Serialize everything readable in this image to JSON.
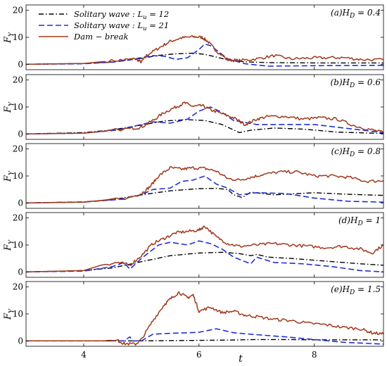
{
  "figure": {
    "xlabel": "t",
    "ylabel_main": "F",
    "ylabel_sub": "Y"
  },
  "legend": [
    {
      "label": "Solitary wave :  Lu = 12",
      "color": "#000000",
      "style": "dashdot"
    },
    {
      "label": "Solitary wave :  Lu = 21",
      "color": "#1f2fd6",
      "style": "dashed"
    },
    {
      "label": "Dam − break",
      "color": "#a0381c",
      "style": "solid"
    }
  ],
  "chart_data": [
    {
      "type": "line",
      "panel": "(a)",
      "label": "(a)HD = 0.4",
      "xlim": [
        3,
        9.2
      ],
      "ylim": [
        -2,
        22
      ],
      "yticks": [
        0,
        10,
        20
      ],
      "xticks": [
        4,
        6,
        8
      ],
      "series": [
        {
          "name": "Solitary wave : Lu = 12",
          "x": [
            3,
            4,
            4.5,
            5,
            5.3,
            5.6,
            5.9,
            6.1,
            6.3,
            6.5,
            6.8,
            7.2,
            8,
            9.2
          ],
          "y": [
            0,
            0.3,
            0.9,
            2.2,
            3.3,
            3.9,
            4.1,
            3.7,
            2.7,
            1.6,
            0.9,
            0.6,
            0.5,
            0.5
          ]
        },
        {
          "name": "Solitary wave : Lu = 21",
          "x": [
            3,
            4,
            4.5,
            4.8,
            5.0,
            5.2,
            5.4,
            5.6,
            5.8,
            6.0,
            6.1,
            6.2,
            6.35,
            6.5,
            6.8,
            7.2,
            8,
            9.2
          ],
          "y": [
            0,
            0.2,
            0.8,
            1.6,
            2.5,
            3.2,
            3.0,
            1.8,
            2.4,
            5.5,
            7.5,
            6.9,
            4.5,
            2.0,
            0.2,
            -0.7,
            -0.5,
            -0.4
          ]
        },
        {
          "name": "Dam − break",
          "x": [
            3,
            4,
            4.6,
            4.9,
            5.0,
            5.1,
            5.3,
            5.5,
            5.7,
            5.9,
            6.05,
            6.15,
            6.3,
            6.5,
            6.7,
            7.0,
            7.3,
            7.6,
            7.9,
            8.2,
            8.5,
            8.8,
            9.2
          ],
          "y": [
            0,
            0.3,
            1.5,
            2.0,
            0.8,
            3.5,
            6.0,
            8.5,
            9.8,
            10.2,
            10.0,
            8.5,
            5.0,
            1.6,
            1.4,
            2.0,
            3.2,
            2.0,
            2.3,
            2.4,
            2.5,
            1.8,
            1.6
          ]
        }
      ]
    },
    {
      "type": "line",
      "panel": "(b)",
      "label": "(b)HD = 0.6",
      "xlim": [
        3,
        9.2
      ],
      "ylim": [
        -2,
        22
      ],
      "yticks": [
        0,
        10,
        20
      ],
      "xticks": [
        4,
        6,
        8
      ],
      "series": [
        {
          "name": "Solitary wave : Lu = 12",
          "x": [
            3,
            4,
            4.5,
            5,
            5.4,
            5.8,
            6.1,
            6.4,
            6.6,
            6.7,
            6.9,
            7.3,
            7.8,
            8.4,
            9.2
          ],
          "y": [
            0,
            0.5,
            1.5,
            3.3,
            4.8,
            5.3,
            5.0,
            3.5,
            1.5,
            0.5,
            1.4,
            2.2,
            1.8,
            0.7,
            0.2
          ]
        },
        {
          "name": "Solitary wave : Lu = 21",
          "x": [
            3,
            4,
            4.6,
            5.0,
            5.2,
            5.5,
            5.8,
            6.0,
            6.2,
            6.4,
            6.6,
            7.0,
            7.5,
            8.0,
            8.6,
            9.2
          ],
          "y": [
            0,
            0.3,
            1.5,
            3.5,
            4.5,
            4.0,
            5.5,
            8.5,
            10.0,
            8.0,
            5.0,
            3.5,
            3.5,
            3.5,
            2.0,
            0.5
          ]
        },
        {
          "name": "Dam − break",
          "x": [
            3,
            4,
            4.8,
            5.0,
            5.2,
            5.4,
            5.6,
            5.75,
            5.9,
            6.05,
            6.2,
            6.4,
            6.6,
            6.8,
            7.0,
            7.2,
            7.5,
            7.8,
            8.1,
            8.4,
            8.7,
            9.0,
            9.2
          ],
          "y": [
            0,
            0.3,
            2.0,
            2.5,
            5.0,
            8.0,
            10.0,
            11.5,
            10.2,
            10.5,
            9.0,
            7.5,
            6.0,
            3.5,
            5.5,
            6.5,
            6.5,
            5.5,
            6.0,
            5.5,
            3.0,
            1.5,
            0.5
          ]
        }
      ]
    },
    {
      "type": "line",
      "panel": "(c)",
      "label": "(c)HD = 0.8",
      "xlim": [
        3,
        9.2
      ],
      "ylim": [
        -2,
        22
      ],
      "yticks": [
        0,
        10,
        20
      ],
      "xticks": [
        4,
        6,
        8
      ],
      "series": [
        {
          "name": "Solitary wave : Lu = 12",
          "x": [
            3,
            4,
            4.5,
            5,
            5.5,
            6.0,
            6.3,
            6.5,
            6.6,
            6.75,
            6.9,
            7.3,
            8.0,
            8.6,
            9.2
          ],
          "y": [
            0,
            0.4,
            1.2,
            3.0,
            4.5,
            5.3,
            5.4,
            5.0,
            3.0,
            2.0,
            4.0,
            3.0,
            3.8,
            3.2,
            2.8
          ]
        },
        {
          "name": "Solitary wave : Lu = 21",
          "x": [
            3,
            4,
            4.6,
            5.0,
            5.2,
            5.5,
            5.7,
            5.9,
            6.1,
            6.3,
            6.5,
            6.7,
            7.0,
            7.5,
            8.0,
            8.6,
            9.2
          ],
          "y": [
            0,
            0.3,
            1.3,
            3.0,
            5.0,
            5.5,
            8.0,
            8.5,
            10.0,
            7.0,
            5.5,
            3.0,
            3.8,
            3.5,
            1.8,
            0.6,
            0.3
          ]
        },
        {
          "name": "Dam − break",
          "x": [
            3,
            4,
            4.8,
            5.0,
            5.15,
            5.3,
            5.5,
            5.7,
            5.9,
            6.1,
            6.3,
            6.5,
            6.7,
            6.9,
            7.1,
            7.4,
            7.7,
            8.0,
            8.3,
            8.6,
            8.9,
            9.2
          ],
          "y": [
            0,
            0.3,
            2.0,
            3.5,
            6.0,
            10.0,
            13.0,
            12.5,
            13.0,
            12.8,
            11.8,
            9.0,
            8.5,
            9.5,
            10.5,
            11.5,
            11.5,
            10.0,
            10.0,
            9.5,
            8.0,
            8.2
          ]
        }
      ]
    },
    {
      "type": "line",
      "panel": "(d)",
      "label": "(d)HD = 1",
      "xlim": [
        3,
        9.2
      ],
      "ylim": [
        -2,
        22
      ],
      "yticks": [
        0,
        10,
        20
      ],
      "xticks": [
        4,
        6,
        8
      ],
      "series": [
        {
          "name": "Solitary wave : Lu = 12",
          "x": [
            3,
            4,
            4.5,
            5,
            5.5,
            6.0,
            6.4,
            6.7,
            6.9,
            7.0,
            7.2,
            7.6,
            8.2,
            8.8,
            9.2
          ],
          "y": [
            0,
            0.5,
            1.5,
            3.8,
            6.0,
            7.0,
            7.3,
            6.8,
            6.0,
            6.5,
            5.5,
            5.0,
            4.0,
            3.0,
            2.5
          ]
        },
        {
          "name": "Solitary wave : Lu = 21",
          "x": [
            3,
            4,
            4.5,
            4.7,
            4.8,
            5.0,
            5.3,
            5.5,
            5.8,
            6.0,
            6.2,
            6.4,
            6.6,
            6.9,
            7.0,
            7.3,
            7.8,
            8.3,
            8.8,
            9.2
          ],
          "y": [
            0,
            0.3,
            2.0,
            3.5,
            1.0,
            5.0,
            10.0,
            11.0,
            10.0,
            11.5,
            10.5,
            8.5,
            5.5,
            3.0,
            5.5,
            3.5,
            3.0,
            2.0,
            0.5,
            0.0
          ]
        },
        {
          "name": "Dam − break",
          "x": [
            3,
            4,
            4.3,
            4.6,
            4.8,
            5.0,
            5.2,
            5.4,
            5.6,
            5.8,
            6.0,
            6.1,
            6.3,
            6.5,
            6.7,
            7.0,
            7.3,
            7.6,
            7.9,
            8.2,
            8.5,
            8.8,
            9.0,
            9.2
          ],
          "y": [
            0,
            0.5,
            2.5,
            3.5,
            2.5,
            6.0,
            10.5,
            12.5,
            14.5,
            15.0,
            15.5,
            17.0,
            13.0,
            10.5,
            9.5,
            10.0,
            10.5,
            10.0,
            9.5,
            9.0,
            9.5,
            8.5,
            7.0,
            10.0
          ]
        }
      ]
    },
    {
      "type": "line",
      "panel": "(e)",
      "label": "(e)HD = 1.5",
      "xlim": [
        3,
        9.2
      ],
      "ylim": [
        -2,
        22
      ],
      "yticks": [
        0,
        10,
        20
      ],
      "xticks": [
        4,
        6,
        8
      ],
      "series": [
        {
          "name": "Solitary wave : Lu = 12",
          "x": [
            3,
            4,
            5,
            5.5,
            6.0,
            6.5,
            7.0,
            7.5,
            8.0,
            8.5,
            9.2
          ],
          "y": [
            0,
            0,
            0,
            0.1,
            0.2,
            0.3,
            0.5,
            0.5,
            0.4,
            0.4,
            0.4
          ]
        },
        {
          "name": "Solitary wave : Lu = 21",
          "x": [
            3,
            4,
            4.7,
            4.8,
            4.85,
            5.0,
            5.2,
            5.5,
            5.8,
            6.0,
            6.3,
            6.6,
            7.0,
            7.5,
            8.0,
            8.5,
            9.2
          ],
          "y": [
            0,
            0,
            0,
            1.5,
            0,
            0,
            2.5,
            2.8,
            3.0,
            3.2,
            4.5,
            3.0,
            2.3,
            1.5,
            0.5,
            -0.5,
            -1.2
          ]
        },
        {
          "name": "Dam − break",
          "x": [
            3,
            4,
            4.6,
            4.7,
            4.9,
            5.0,
            5.2,
            5.4,
            5.5,
            5.65,
            5.8,
            5.9,
            6.0,
            6.2,
            6.4,
            6.6,
            6.8,
            7.0,
            7.3,
            7.6,
            7.9,
            8.2,
            8.5,
            8.8,
            9.0,
            9.2
          ],
          "y": [
            0,
            0,
            0,
            -1.0,
            -1.2,
            0.5,
            7.5,
            13.5,
            15.5,
            18.0,
            16.0,
            17.0,
            11.0,
            12.5,
            10.5,
            11.0,
            9.5,
            9.0,
            8.0,
            7.5,
            6.5,
            6.0,
            5.0,
            4.5,
            3.0,
            2.5
          ]
        }
      ]
    }
  ]
}
